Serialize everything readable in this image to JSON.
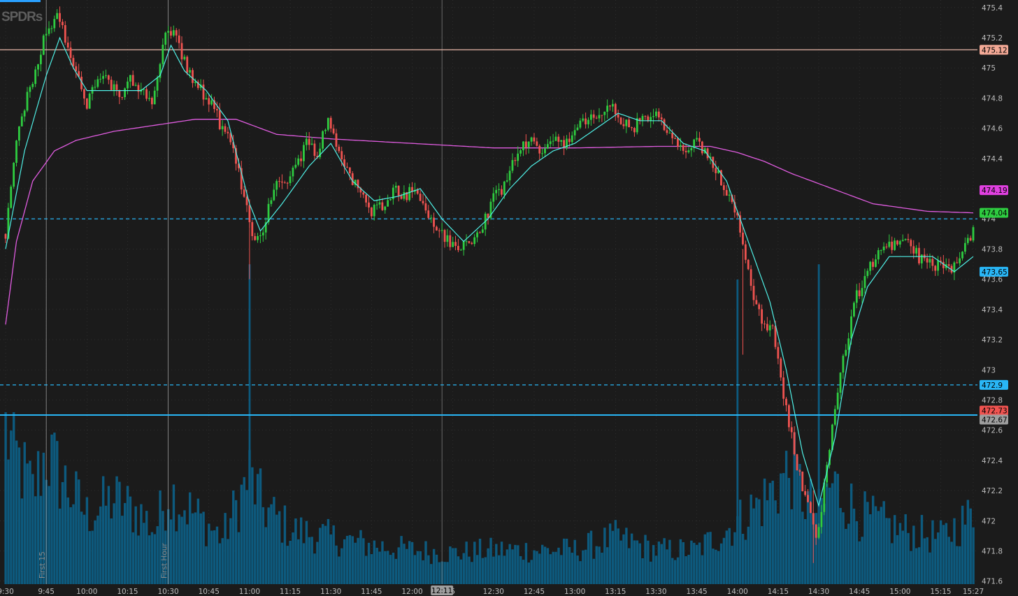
{
  "app": {
    "watermark": "SPDRs"
  },
  "chart_data": {
    "type": "candlestick",
    "symbol_watermark": "SPDRs",
    "y_ticks": [
      475.4,
      475.2,
      475,
      474.8,
      474.6,
      474.4,
      474.2,
      474,
      473.8,
      473.6,
      473.4,
      473.2,
      473,
      472.8,
      472.6,
      472.4,
      472.2,
      472,
      471.8,
      471.6
    ],
    "y_tick_labels": [
      "475.4",
      "475.2",
      "475",
      "474.8",
      "474.6",
      "474.4",
      "474.2",
      "474",
      "473.8",
      "473.6",
      "473.4",
      "473.2",
      "473",
      "472.8",
      "472.6",
      "472.4",
      "472.2",
      "472",
      "471.8",
      "471.6"
    ],
    "ylim": [
      471.58,
      475.45
    ],
    "x_ticks": [
      "9:30",
      "9:45",
      "10:00",
      "10:15",
      "10:30",
      "10:45",
      "11:00",
      "11:15",
      "11:30",
      "11:45",
      "12:00",
      "12:15",
      "12:30",
      "12:45",
      "13:00",
      "13:15",
      "13:30",
      "13:45",
      "14:00",
      "14:15",
      "14:30",
      "14:45",
      "15:00",
      "15:15",
      "15:27"
    ],
    "x_tick_labels": [
      "9:30",
      "9:45",
      "10:00",
      "10:15",
      "10:30",
      "10:45",
      "11:00",
      "11:15",
      "11:30",
      "11:45",
      "12:00",
      "5",
      "12:30",
      "12:45",
      "13:00",
      "13:15",
      "13:30",
      "13:45",
      "14:00",
      "14:15",
      "14:30",
      "14:45",
      "15:00",
      "15:15",
      "15:27"
    ],
    "cursor_time_label": "12:11",
    "price_series_keypoints": [
      [
        "9:30",
        473.9
      ],
      [
        "9:33",
        474.4
      ],
      [
        "9:37",
        474.75
      ],
      [
        "9:41",
        475.0
      ],
      [
        "9:45",
        475.25
      ],
      [
        "9:49",
        475.35
      ],
      [
        "9:52",
        475.2
      ],
      [
        "9:56",
        474.95
      ],
      [
        "10:00",
        474.75
      ],
      [
        "10:04",
        474.95
      ],
      [
        "10:08",
        474.9
      ],
      [
        "10:12",
        474.8
      ],
      [
        "10:16",
        474.95
      ],
      [
        "10:20",
        474.85
      ],
      [
        "10:24",
        474.75
      ],
      [
        "10:27",
        475.05
      ],
      [
        "10:30",
        475.28
      ],
      [
        "10:34",
        475.15
      ],
      [
        "10:38",
        474.95
      ],
      [
        "10:42",
        474.85
      ],
      [
        "10:46",
        474.75
      ],
      [
        "10:50",
        474.6
      ],
      [
        "10:54",
        474.45
      ],
      [
        "10:58",
        474.15
      ],
      [
        "11:02",
        473.85
      ],
      [
        "11:05",
        473.95
      ],
      [
        "11:09",
        474.2
      ],
      [
        "11:13",
        474.25
      ],
      [
        "11:17",
        474.35
      ],
      [
        "11:21",
        474.5
      ],
      [
        "11:25",
        474.45
      ],
      [
        "11:29",
        474.65
      ],
      [
        "11:33",
        474.45
      ],
      [
        "11:37",
        474.3
      ],
      [
        "11:41",
        474.15
      ],
      [
        "11:45",
        474.05
      ],
      [
        "11:49",
        474.1
      ],
      [
        "11:53",
        474.2
      ],
      [
        "11:57",
        474.15
      ],
      [
        "12:01",
        474.2
      ],
      [
        "12:05",
        474.05
      ],
      [
        "12:09",
        473.95
      ],
      [
        "12:13",
        473.85
      ],
      [
        "12:17",
        473.8
      ],
      [
        "12:21",
        473.85
      ],
      [
        "12:25",
        473.9
      ],
      [
        "12:29",
        474.1
      ],
      [
        "12:33",
        474.2
      ],
      [
        "12:37",
        474.35
      ],
      [
        "12:41",
        474.5
      ],
      [
        "12:45",
        474.5
      ],
      [
        "12:49",
        474.45
      ],
      [
        "12:53",
        474.55
      ],
      [
        "12:57",
        474.5
      ],
      [
        "13:01",
        474.6
      ],
      [
        "13:05",
        474.65
      ],
      [
        "13:09",
        474.7
      ],
      [
        "13:13",
        474.75
      ],
      [
        "13:17",
        474.65
      ],
      [
        "13:21",
        474.6
      ],
      [
        "13:25",
        474.65
      ],
      [
        "13:29",
        474.7
      ],
      [
        "13:33",
        474.6
      ],
      [
        "13:37",
        474.5
      ],
      [
        "13:41",
        474.45
      ],
      [
        "13:45",
        474.5
      ],
      [
        "13:49",
        474.4
      ],
      [
        "13:53",
        474.3
      ],
      [
        "13:57",
        474.15
      ],
      [
        "14:01",
        473.95
      ],
      [
        "14:05",
        473.55
      ],
      [
        "14:09",
        473.35
      ],
      [
        "14:13",
        473.25
      ],
      [
        "14:17",
        472.85
      ],
      [
        "14:21",
        472.45
      ],
      [
        "14:25",
        472.15
      ],
      [
        "14:29",
        471.9
      ],
      [
        "14:31",
        472.1
      ],
      [
        "14:35",
        472.65
      ],
      [
        "14:39",
        473.05
      ],
      [
        "14:43",
        473.45
      ],
      [
        "14:47",
        473.6
      ],
      [
        "14:51",
        473.75
      ],
      [
        "14:55",
        473.85
      ],
      [
        "14:59",
        473.8
      ],
      [
        "15:03",
        473.85
      ],
      [
        "15:07",
        473.75
      ],
      [
        "15:11",
        473.7
      ],
      [
        "15:15",
        473.7
      ],
      [
        "15:19",
        473.65
      ],
      [
        "15:23",
        473.75
      ],
      [
        "15:27",
        473.95
      ]
    ],
    "ema_keypoints": [
      [
        "9:30",
        473.8
      ],
      [
        "9:37",
        474.45
      ],
      [
        "9:45",
        474.95
      ],
      [
        "9:50",
        475.2
      ],
      [
        "9:55",
        475.0
      ],
      [
        "10:00",
        474.85
      ],
      [
        "10:10",
        474.85
      ],
      [
        "10:20",
        474.85
      ],
      [
        "10:27",
        474.95
      ],
      [
        "10:31",
        475.15
      ],
      [
        "10:36",
        474.98
      ],
      [
        "10:44",
        474.85
      ],
      [
        "10:52",
        474.65
      ],
      [
        "11:00",
        474.1
      ],
      [
        "11:04",
        473.92
      ],
      [
        "11:12",
        474.1
      ],
      [
        "11:22",
        474.35
      ],
      [
        "11:30",
        474.5
      ],
      [
        "11:38",
        474.25
      ],
      [
        "11:46",
        474.12
      ],
      [
        "11:55",
        474.15
      ],
      [
        "12:03",
        474.2
      ],
      [
        "12:11",
        474.0
      ],
      [
        "12:19",
        473.85
      ],
      [
        "12:28",
        474.0
      ],
      [
        "12:36",
        474.2
      ],
      [
        "12:44",
        474.35
      ],
      [
        "12:52",
        474.45
      ],
      [
        "13:00",
        474.5
      ],
      [
        "13:08",
        474.6
      ],
      [
        "13:16",
        474.7
      ],
      [
        "13:24",
        474.65
      ],
      [
        "13:32",
        474.65
      ],
      [
        "13:40",
        474.5
      ],
      [
        "13:48",
        474.45
      ],
      [
        "13:56",
        474.25
      ],
      [
        "14:04",
        473.85
      ],
      [
        "14:12",
        473.45
      ],
      [
        "14:18",
        473.0
      ],
      [
        "14:24",
        472.45
      ],
      [
        "14:30",
        472.1
      ],
      [
        "14:36",
        472.55
      ],
      [
        "14:42",
        473.2
      ],
      [
        "14:48",
        473.55
      ],
      [
        "14:56",
        473.75
      ],
      [
        "15:04",
        473.75
      ],
      [
        "15:12",
        473.75
      ],
      [
        "15:20",
        473.65
      ],
      [
        "15:27",
        473.75
      ]
    ],
    "vwap_keypoints": [
      [
        "9:30",
        473.3
      ],
      [
        "9:34",
        473.85
      ],
      [
        "9:40",
        474.25
      ],
      [
        "9:48",
        474.45
      ],
      [
        "9:56",
        474.52
      ],
      [
        "10:10",
        474.58
      ],
      [
        "10:25",
        474.62
      ],
      [
        "10:40",
        474.66
      ],
      [
        "10:55",
        474.66
      ],
      [
        "11:10",
        474.56
      ],
      [
        "11:30",
        474.53
      ],
      [
        "12:00",
        474.5
      ],
      [
        "12:30",
        474.47
      ],
      [
        "13:00",
        474.47
      ],
      [
        "13:30",
        474.48
      ],
      [
        "13:50",
        474.48
      ],
      [
        "14:00",
        474.44
      ],
      [
        "14:10",
        474.38
      ],
      [
        "14:20",
        474.3
      ],
      [
        "14:35",
        474.2
      ],
      [
        "14:50",
        474.1
      ],
      [
        "15:10",
        474.05
      ],
      [
        "15:27",
        474.04
      ]
    ],
    "volume_keypoints": [
      [
        "9:30",
        1.0
      ],
      [
        "9:33",
        0.85
      ],
      [
        "9:40",
        0.6
      ],
      [
        "9:45",
        0.85
      ],
      [
        "9:50",
        0.7
      ],
      [
        "10:00",
        0.45
      ],
      [
        "10:10",
        0.55
      ],
      [
        "10:20",
        0.45
      ],
      [
        "10:25",
        0.35
      ],
      [
        "10:30",
        0.6
      ],
      [
        "10:40",
        0.45
      ],
      [
        "10:50",
        0.3
      ],
      [
        "11:00",
        0.7
      ],
      [
        "11:05",
        0.5
      ],
      [
        "11:15",
        0.35
      ],
      [
        "11:30",
        0.3
      ],
      [
        "11:45",
        0.25
      ],
      [
        "12:00",
        0.22
      ],
      [
        "12:15",
        0.2
      ],
      [
        "12:30",
        0.22
      ],
      [
        "12:45",
        0.22
      ],
      [
        "13:00",
        0.22
      ],
      [
        "13:15",
        0.3
      ],
      [
        "13:30",
        0.22
      ],
      [
        "13:45",
        0.22
      ],
      [
        "14:00",
        0.4
      ],
      [
        "14:10",
        0.55
      ],
      [
        "14:20",
        0.75
      ],
      [
        "14:25",
        0.55
      ],
      [
        "14:30",
        0.45
      ],
      [
        "14:35",
        0.65
      ],
      [
        "14:45",
        0.45
      ],
      [
        "15:00",
        0.35
      ],
      [
        "15:15",
        0.3
      ],
      [
        "15:27",
        0.45
      ]
    ],
    "horizontal_levels": [
      {
        "name": "resistance",
        "value": 475.12,
        "label": "475.12",
        "style": "solid",
        "color": "#e9b9a8"
      },
      {
        "name": "dashed-high",
        "value": 474.0,
        "label": "474",
        "style": "dashed",
        "color": "#29b6f6"
      },
      {
        "name": "dashed-low",
        "value": 472.9,
        "label": "472.9",
        "style": "dashed",
        "color": "#29b6f6"
      },
      {
        "name": "support",
        "value": 472.7,
        "label": "472.67",
        "style": "solid",
        "color": "#29b6f6"
      }
    ],
    "price_tags": [
      {
        "name": "tag-475-12",
        "value": 475.12,
        "label": "475.12",
        "bg": "#f3a996",
        "fg": "#000000"
      },
      {
        "name": "tag-474-19",
        "value": 474.19,
        "label": "474.19",
        "bg": "#e040e0",
        "fg": "#000000"
      },
      {
        "name": "tag-474-04",
        "value": 474.04,
        "label": "474.04",
        "bg": "#2ecc40",
        "fg": "#000000"
      },
      {
        "name": "tag-473-65",
        "value": 473.65,
        "label": "473.65",
        "bg": "#29b6f6",
        "fg": "#000000"
      },
      {
        "name": "tag-472-9",
        "value": 472.9,
        "label": "472.9",
        "bg": "#29b6f6",
        "fg": "#000000"
      },
      {
        "name": "tag-472-73",
        "value": 472.73,
        "label": "472.73",
        "bg": "#ef5350",
        "fg": "#000000"
      },
      {
        "name": "tag-472-67",
        "value": 472.67,
        "label": "472.67",
        "bg": "#9e9e9e",
        "fg": "#000000"
      }
    ],
    "time_annotations": [
      {
        "name": "first-15",
        "time": "9:45",
        "label": "First 15"
      },
      {
        "name": "first-hour",
        "time": "10:30",
        "label": "First Hour"
      }
    ],
    "cursor_time": "12:11",
    "colors": {
      "background": "#1b1b1b",
      "up_candle": "#2ecc40",
      "down_candle": "#ef5350",
      "ema": "#4ff0e6",
      "vwap": "#e05ce0",
      "volume": "#0d5a7e",
      "grid": "#3a3a3a"
    },
    "grid": true
  }
}
